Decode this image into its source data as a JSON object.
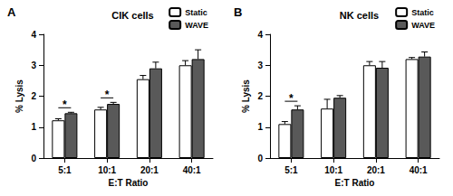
{
  "chart_data": [
    {
      "type": "bar",
      "panel": "A",
      "title": "CIK cells",
      "x_label": "E:T Ratio",
      "y_label": "% Lysis",
      "categories": [
        "5:1",
        "10:1",
        "20:1",
        "40:1"
      ],
      "series": [
        {
          "name": "Static",
          "color": "#ffffff",
          "values": [
            1.22,
            1.57,
            2.55,
            3.0
          ],
          "errors": [
            0.05,
            0.07,
            0.12,
            0.15
          ]
        },
        {
          "name": "WAVE",
          "color": "#595959",
          "values": [
            1.45,
            1.75,
            2.9,
            3.2
          ],
          "errors": [
            0.03,
            0.05,
            0.2,
            0.3
          ]
        }
      ],
      "ylim": [
        0,
        4
      ],
      "yticks": [
        0,
        1,
        2,
        3,
        4
      ],
      "grid": false,
      "legend": "top-right",
      "annotations": [
        {
          "category": "5:1",
          "text": "*"
        },
        {
          "category": "10:1",
          "text": "*"
        }
      ]
    },
    {
      "type": "bar",
      "panel": "B",
      "title": "NK cells",
      "x_label": "E:T Ratio",
      "y_label": "% Lysis",
      "categories": [
        "5:1",
        "10:1",
        "20:1",
        "40:1"
      ],
      "series": [
        {
          "name": "Static",
          "color": "#ffffff",
          "values": [
            1.1,
            1.6,
            3.0,
            3.2
          ],
          "errors": [
            0.08,
            0.3,
            0.12,
            0.05
          ]
        },
        {
          "name": "WAVE",
          "color": "#595959",
          "values": [
            1.57,
            1.95,
            2.92,
            3.28
          ],
          "errors": [
            0.12,
            0.07,
            0.2,
            0.15
          ]
        }
      ],
      "ylim": [
        0,
        4
      ],
      "yticks": [
        0,
        1,
        2,
        3,
        4
      ],
      "grid": false,
      "legend": "top-right",
      "annotations": [
        {
          "category": "5:1",
          "text": "*"
        }
      ]
    }
  ]
}
